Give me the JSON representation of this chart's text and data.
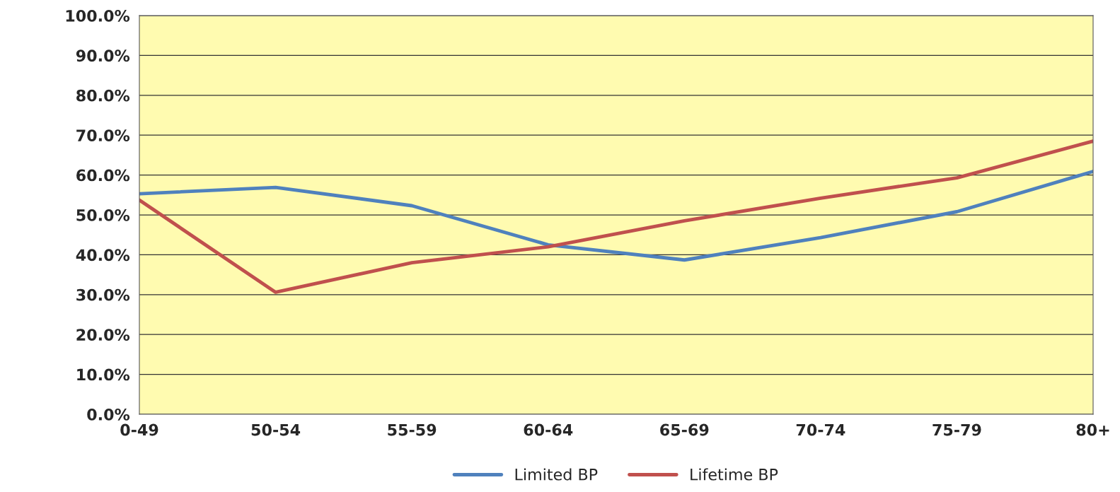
{
  "chart_data": {
    "type": "line",
    "categories": [
      "0-49",
      "50-54",
      "55-59",
      "60-64",
      "65-69",
      "70-74",
      "75-79",
      "80+"
    ],
    "series": [
      {
        "name": "Limited BP",
        "color": "#4f81bd",
        "values": [
          55.3,
          56.9,
          52.3,
          42.5,
          38.7,
          44.3,
          50.8,
          60.9
        ]
      },
      {
        "name": "Lifetime BP",
        "color": "#c0504d",
        "values": [
          53.7,
          30.6,
          38.0,
          42.0,
          48.5,
          54.2,
          59.3,
          68.5
        ]
      }
    ],
    "ylim": [
      0,
      100
    ],
    "yticks": [
      {
        "value": 0,
        "label": "0.0%"
      },
      {
        "value": 10,
        "label": "10.0%"
      },
      {
        "value": 20,
        "label": "20.0%"
      },
      {
        "value": 30,
        "label": "30.0%"
      },
      {
        "value": 40,
        "label": "40.0%"
      },
      {
        "value": 50,
        "label": "50.0%"
      },
      {
        "value": 60,
        "label": "60.0%"
      },
      {
        "value": 70,
        "label": "70.0%"
      },
      {
        "value": 80,
        "label": "80.0%"
      },
      {
        "value": 90,
        "label": "90.0%"
      },
      {
        "value": 100,
        "label": "100.0%"
      }
    ],
    "grid": "y",
    "legend": "bottom",
    "marker": "none",
    "line_style": "solid"
  }
}
